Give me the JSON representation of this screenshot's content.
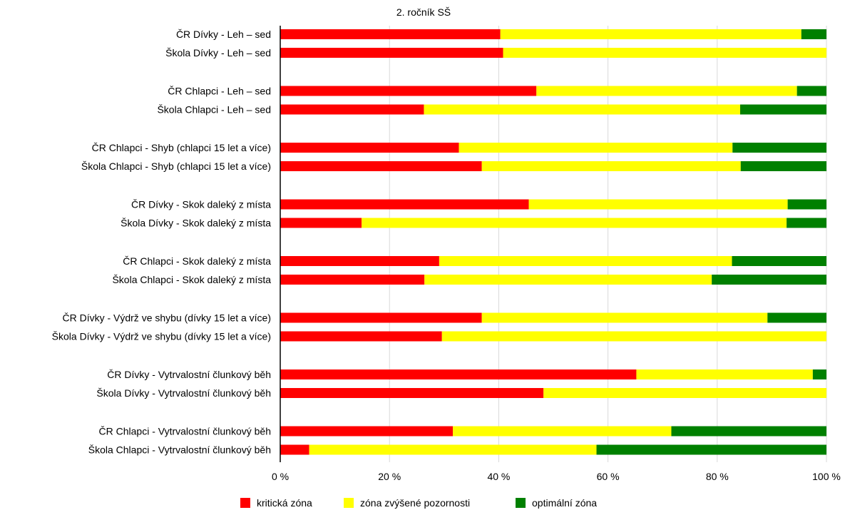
{
  "chart_data": {
    "type": "bar",
    "orientation": "horizontal",
    "stacked": "percent",
    "title": "2. ročník SŠ",
    "xlim": [
      0,
      100
    ],
    "x_ticks": [
      "0 %",
      "20 %",
      "40 %",
      "60 %",
      "80 %",
      "100 %"
    ],
    "grid": true,
    "legend_position": "bottom",
    "categories": [
      "ČR Dívky - Leh – sed",
      "Škola Dívky - Leh – sed",
      "ČR Chlapci - Leh – sed",
      "Škola Chlapci - Leh – sed",
      "ČR Chlapci - Shyb (chlapci 15 let a více)",
      "Škola Chlapci - Shyb (chlapci 15 let a více)",
      "ČR Dívky - Skok daleký z místa",
      "Škola Dívky - Skok daleký z místa",
      "ČR Chlapci - Skok daleký z místa",
      "Škola Chlapci - Skok daleký z místa",
      "ČR Dívky - Výdrž ve shybu (dívky 15 let a více)",
      "Škola Dívky - Výdrž ve shybu (dívky 15 let a více)",
      "ČR Dívky - Vytrvalostní člunkový běh",
      "Škola Dívky - Vytrvalostní člunkový běh",
      "ČR Chlapci - Vytrvalostní člunkový běh",
      "Škola Chlapci - Vytrvalostní člunkový běh"
    ],
    "series": [
      {
        "name": "kritická zóna",
        "color": "#ff0000",
        "values": [
          40.3,
          40.8,
          46.9,
          26.3,
          32.7,
          36.9,
          45.5,
          14.9,
          29.1,
          26.4,
          36.9,
          29.6,
          65.2,
          48.2,
          31.6,
          5.3
        ]
      },
      {
        "name": "zóna zvýšené pozornosti",
        "color": "#ffff00",
        "values": [
          55.1,
          59.2,
          47.7,
          57.9,
          50.1,
          47.4,
          47.4,
          77.8,
          53.6,
          52.6,
          52.3,
          70.4,
          32.3,
          51.8,
          40.0,
          52.6
        ]
      },
      {
        "name": "optimální zóna",
        "color": "#008000",
        "values": [
          4.6,
          0.0,
          5.4,
          15.8,
          17.2,
          15.7,
          7.1,
          7.3,
          17.3,
          21.0,
          10.8,
          0.0,
          2.5,
          0.0,
          28.4,
          42.1
        ]
      }
    ]
  }
}
